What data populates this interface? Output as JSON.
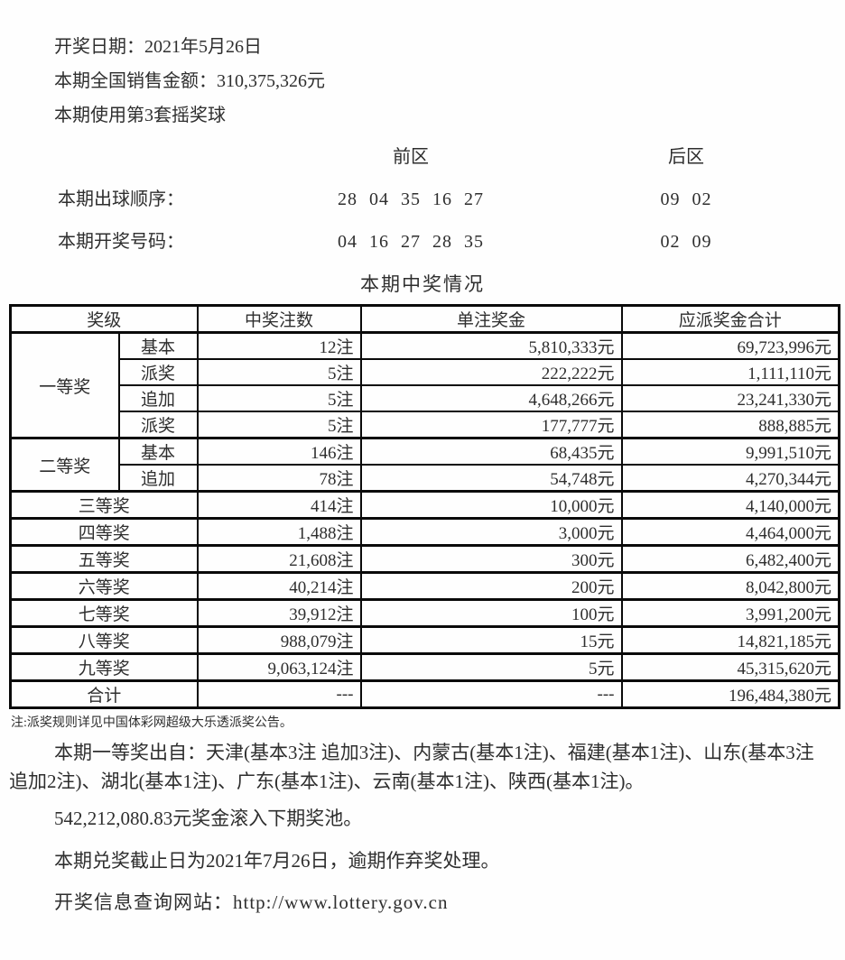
{
  "colors": {
    "text": "#2e2e2e",
    "border": "#0a0a0a",
    "background": "#ffffff"
  },
  "header": {
    "draw_date": "开奖日期：2021年5月26日",
    "sales_amount": "本期全国销售金额：310,375,326元",
    "ball_set": "本期使用第3套摇奖球"
  },
  "zones": {
    "front_header": "前区",
    "rear_header": "后区",
    "rows": [
      {
        "label": "本期出球顺序：",
        "front": "28 04 35 16 27",
        "rear": "09 02"
      },
      {
        "label": "本期开奖号码：",
        "front": "04 16 27 28 35",
        "rear": "02 09"
      }
    ]
  },
  "prize_table": {
    "title": "本期中奖情况",
    "columns": [
      "奖级",
      "中奖注数",
      "单注奖金",
      "应派奖金合计"
    ],
    "rows": [
      {
        "group": "一等奖",
        "rowspan": 4,
        "sub": "基本",
        "count": "12注",
        "single": "5,810,333元",
        "total": "69,723,996元"
      },
      {
        "sub": "派奖",
        "count": "5注",
        "single": "222,222元",
        "total": "1,111,110元"
      },
      {
        "sub": "追加",
        "count": "5注",
        "single": "4,648,266元",
        "total": "23,241,330元"
      },
      {
        "sub": "派奖",
        "count": "5注",
        "single": "177,777元",
        "total": "888,885元"
      },
      {
        "group": "二等奖",
        "rowspan": 2,
        "sub": "基本",
        "count": "146注",
        "single": "68,435元",
        "total": "9,991,510元"
      },
      {
        "sub": "追加",
        "count": "78注",
        "single": "54,748元",
        "total": "4,270,344元"
      },
      {
        "label": "三等奖",
        "count": "414注",
        "single": "10,000元",
        "total": "4,140,000元"
      },
      {
        "label": "四等奖",
        "count": "1,488注",
        "single": "3,000元",
        "total": "4,464,000元"
      },
      {
        "label": "五等奖",
        "count": "21,608注",
        "single": "300元",
        "total": "6,482,400元"
      },
      {
        "label": "六等奖",
        "count": "40,214注",
        "single": "200元",
        "total": "8,042,800元"
      },
      {
        "label": "七等奖",
        "count": "39,912注",
        "single": "100元",
        "total": "3,991,200元"
      },
      {
        "label": "八等奖",
        "count": "988,079注",
        "single": "15元",
        "total": "14,821,185元"
      },
      {
        "label": "九等奖",
        "count": "9,063,124注",
        "single": "5元",
        "total": "45,315,620元"
      },
      {
        "label": "合计",
        "count": "---",
        "single": "---",
        "total": "196,484,380元"
      }
    ]
  },
  "notes": {
    "rule_note": "注:派奖规则详见中国体彩网超级大乐透派奖公告。",
    "first_prize_origin": "本期一等奖出自：天津(基本3注 追加3注)、内蒙古(基本1注)、福建(基本1注)、山东(基本3注 追加2注)、湖北(基本1注)、广东(基本1注)、云南(基本1注)、陕西(基本1注)。",
    "rollover": "542,212,080.83元奖金滚入下期奖池。",
    "redeem_deadline": "本期兑奖截止日为2021年7月26日，逾期作弃奖处理。",
    "query_site": "开奖信息查询网站：http://www.lottery.gov.cn"
  }
}
